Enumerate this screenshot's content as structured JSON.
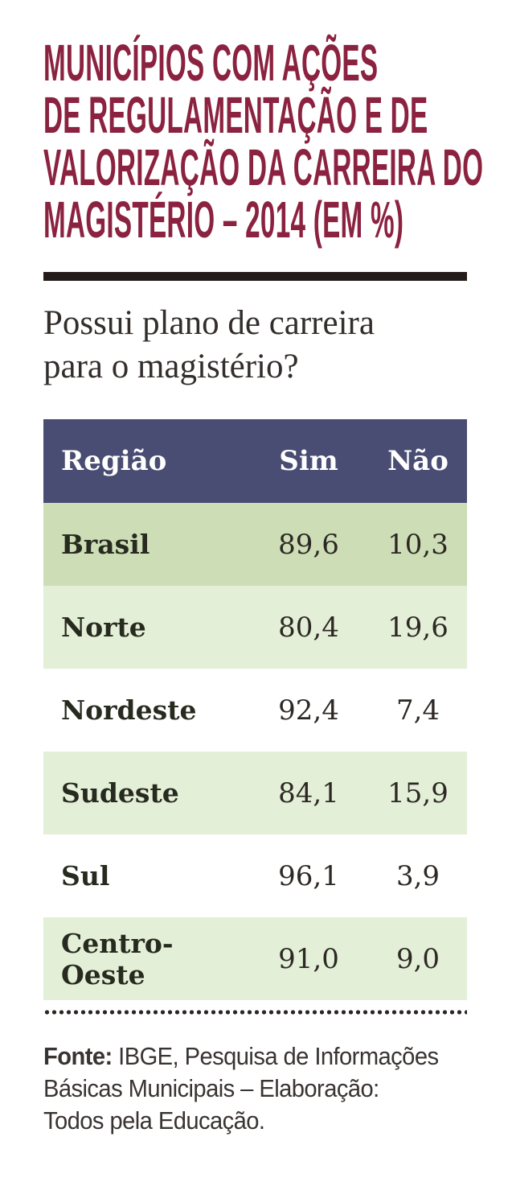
{
  "title": {
    "lines": [
      "MUNICÍPIOS COM AÇÕES",
      "DE REGULAMENTAÇÃO E DE",
      "VALORIZAÇÃO DA CARREIRA DO",
      "MAGISTÉRIO – 2014 (EM %)"
    ]
  },
  "question": {
    "lines": [
      "Possui plano de carreira",
      "para o magistério?"
    ]
  },
  "table": {
    "columns": {
      "region": "Região",
      "yes": "Sim",
      "no": "Não"
    },
    "rows": [
      {
        "region": "Brasil",
        "sim": "89,6",
        "nao": "10,3"
      },
      {
        "region": "Norte",
        "sim": "80,4",
        "nao": "19,6"
      },
      {
        "region": "Nordeste",
        "sim": "92,4",
        "nao": "7,4"
      },
      {
        "region": "Sudeste",
        "sim": "84,1",
        "nao": "15,9"
      },
      {
        "region": "Sul",
        "sim": "96,1",
        "nao": "3,9"
      },
      {
        "region": "Centro-Oeste",
        "sim": "91,0",
        "nao": "9,0"
      }
    ]
  },
  "source": {
    "label": "Fonte:",
    "line1_rest": " IBGE, Pesquisa de Informações",
    "line2": "Básicas Municipais – Elaboração:",
    "line3": "Todos pela Educação."
  },
  "colors": {
    "headline_maroon": "#8b2240",
    "rule_black": "#231c1a",
    "header_navy": "#4a4d73",
    "header_text": "#ffffff",
    "row_dark_green": "#cdddb6",
    "row_light_green": "#e4efd8",
    "row_white": "#ffffff",
    "region_text": "#272a1e",
    "number_text": "#2d2824",
    "question_text": "#332e2c",
    "source_text": "#393432"
  },
  "chart_data": {
    "type": "table",
    "title": "Municípios com ações de regulamentação e de valorização da carreira do magistério – 2014 (em %)",
    "question": "Possui plano de carreira para o magistério?",
    "columns": [
      "Região",
      "Sim",
      "Não"
    ],
    "rows": [
      [
        "Brasil",
        89.6,
        10.3
      ],
      [
        "Norte",
        80.4,
        19.6
      ],
      [
        "Nordeste",
        92.4,
        7.4
      ],
      [
        "Sudeste",
        84.1,
        15.9
      ],
      [
        "Sul",
        96.1,
        3.9
      ],
      [
        "Centro-Oeste",
        91.0,
        9.0
      ]
    ],
    "units": "percent",
    "source": "Fonte: IBGE, Pesquisa de Informações Básicas Municipais – Elaboração: Todos pela Educação."
  }
}
